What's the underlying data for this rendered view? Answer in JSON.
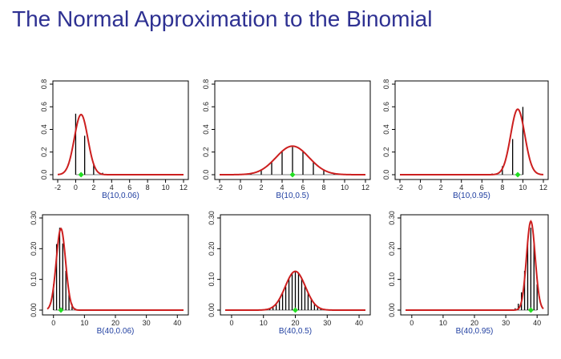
{
  "title": "The Normal Approximation to the Binomial",
  "colors": {
    "title": "#2e3192",
    "curve": "#cc1f1f",
    "bars": "#000000",
    "mean_marker": "#22dd22",
    "xlabel": "#1f3ea0"
  },
  "chart_data": [
    {
      "type": "bar",
      "xlabel": "B(10,0.06)",
      "n": 10,
      "p": 0.06,
      "mean": 0.6,
      "x": [
        0,
        1,
        2,
        3,
        4,
        5,
        6,
        7,
        8,
        9,
        10
      ],
      "values": [
        0.539,
        0.344,
        0.099,
        0.017,
        0.002,
        0.0,
        0.0,
        0.0,
        0.0,
        0.0,
        0.0
      ],
      "xlim": [
        -2,
        12
      ],
      "xticks": [
        -2,
        0,
        2,
        4,
        6,
        8,
        10,
        12
      ],
      "xtick_labels": [
        "-2",
        "0",
        "2",
        "4",
        "6",
        "8",
        "10",
        "12"
      ],
      "ylim": [
        0,
        0.8
      ],
      "yticks": [
        0,
        0.2,
        0.4,
        0.6,
        0.8
      ],
      "ytick_labels": [
        "0.0",
        "0.2",
        "0.4",
        "0.6",
        "0.8"
      ]
    },
    {
      "type": "bar",
      "xlabel": "B(10,0.5)",
      "n": 10,
      "p": 0.5,
      "mean": 5,
      "x": [
        0,
        1,
        2,
        3,
        4,
        5,
        6,
        7,
        8,
        9,
        10
      ],
      "values": [
        0.001,
        0.01,
        0.044,
        0.117,
        0.205,
        0.246,
        0.205,
        0.117,
        0.044,
        0.01,
        0.001
      ],
      "xlim": [
        -2,
        12
      ],
      "xticks": [
        -2,
        0,
        2,
        4,
        6,
        8,
        10,
        12
      ],
      "xtick_labels": [
        "-2",
        "0",
        "2",
        "4",
        "6",
        "8",
        "10",
        "12"
      ],
      "ylim": [
        0,
        0.8
      ],
      "yticks": [
        0,
        0.2,
        0.4,
        0.6,
        0.8
      ],
      "ytick_labels": [
        "0.0",
        "0.2",
        "0.4",
        "0.6",
        "0.8"
      ]
    },
    {
      "type": "bar",
      "xlabel": "B(10,0.95)",
      "n": 10,
      "p": 0.95,
      "mean": 9.5,
      "x": [
        0,
        1,
        2,
        3,
        4,
        5,
        6,
        7,
        8,
        9,
        10
      ],
      "values": [
        0.0,
        0.0,
        0.0,
        0.0,
        0.0,
        0.0,
        0.001,
        0.01,
        0.075,
        0.315,
        0.599
      ],
      "xlim": [
        -2,
        12
      ],
      "xticks": [
        -2,
        0,
        2,
        4,
        6,
        8,
        10,
        12
      ],
      "xtick_labels": [
        "-2",
        "0",
        "2",
        "4",
        "6",
        "8",
        "10",
        "12"
      ],
      "ylim": [
        0,
        0.8
      ],
      "yticks": [
        0,
        0.2,
        0.4,
        0.6,
        0.8
      ],
      "ytick_labels": [
        "0.0",
        "0.2",
        "0.4",
        "0.6",
        "0.8"
      ]
    },
    {
      "type": "bar",
      "xlabel": "B(40,0.06)",
      "n": 40,
      "p": 0.06,
      "mean": 2.4,
      "x": [
        0,
        1,
        2,
        3,
        4,
        5,
        6,
        7,
        8,
        9,
        10
      ],
      "values": [
        0.084,
        0.215,
        0.268,
        0.217,
        0.128,
        0.058,
        0.021,
        0.006,
        0.002,
        0.0,
        0.0
      ],
      "xlim": [
        -2,
        42
      ],
      "xticks": [
        0,
        10,
        20,
        30,
        40
      ],
      "xtick_labels": [
        "0",
        "10",
        "20",
        "30",
        "40"
      ],
      "ylim": [
        0,
        0.3
      ],
      "yticks": [
        0,
        0.1,
        0.2,
        0.3
      ],
      "ytick_labels": [
        "0.00",
        "0.10",
        "0.20",
        "0.30"
      ]
    },
    {
      "type": "bar",
      "xlabel": "B(40,0.5)",
      "n": 40,
      "p": 0.5,
      "mean": 20,
      "x": [
        10,
        11,
        12,
        13,
        14,
        15,
        16,
        17,
        18,
        19,
        20,
        21,
        22,
        23,
        24,
        25,
        26,
        27,
        28,
        29,
        30
      ],
      "values": [
        0.001,
        0.003,
        0.006,
        0.012,
        0.021,
        0.036,
        0.055,
        0.077,
        0.103,
        0.119,
        0.125,
        0.119,
        0.103,
        0.077,
        0.055,
        0.036,
        0.021,
        0.012,
        0.006,
        0.003,
        0.001
      ],
      "xlim": [
        -2,
        42
      ],
      "xticks": [
        0,
        10,
        20,
        30,
        40
      ],
      "xtick_labels": [
        "0",
        "10",
        "20",
        "30",
        "40"
      ],
      "ylim": [
        0,
        0.3
      ],
      "yticks": [
        0,
        0.1,
        0.2,
        0.3
      ],
      "ytick_labels": [
        "0.00",
        "0.10",
        "0.20",
        "0.30"
      ]
    },
    {
      "type": "bar",
      "xlabel": "B(40,0.95)",
      "n": 40,
      "p": 0.95,
      "mean": 38,
      "x": [
        30,
        31,
        32,
        33,
        34,
        35,
        36,
        37,
        38,
        39,
        40
      ],
      "values": [
        0.0,
        0.0,
        0.002,
        0.006,
        0.021,
        0.058,
        0.128,
        0.217,
        0.268,
        0.215,
        0.084
      ],
      "xlim": [
        -2,
        42
      ],
      "xticks": [
        0,
        10,
        20,
        30,
        40
      ],
      "xtick_labels": [
        "0",
        "10",
        "20",
        "30",
        "40"
      ],
      "ylim": [
        0,
        0.3
      ],
      "yticks": [
        0,
        0.1,
        0.2,
        0.3
      ],
      "ytick_labels": [
        "0.00",
        "0.10",
        "0.20",
        "0.30"
      ]
    }
  ]
}
